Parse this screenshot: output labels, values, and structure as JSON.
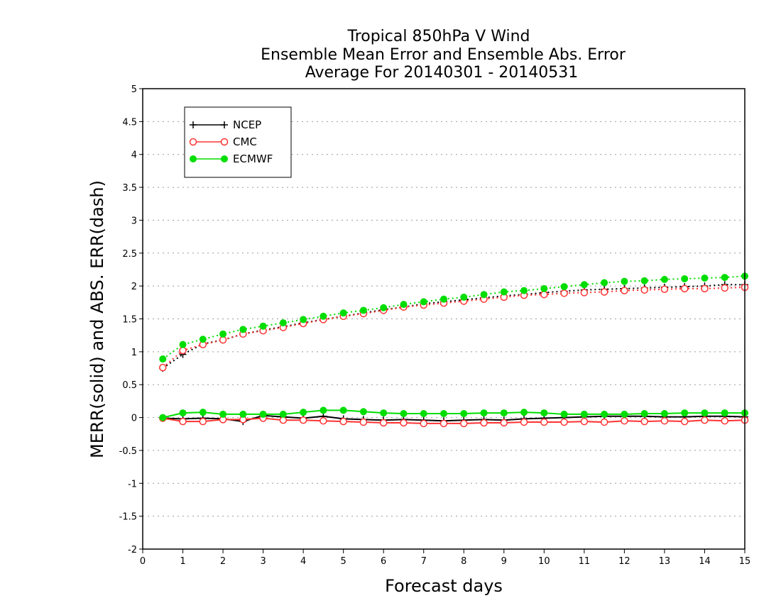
{
  "chart_data": {
    "type": "line",
    "title_lines": [
      "Tropical 850hPa V Wind",
      "Ensemble Mean Error and Ensemble Abs. Error",
      "Average For 20140301 - 20140531"
    ],
    "xlabel": "Forecast days",
    "ylabel": "MERR(solid) and ABS. ERR(dash)",
    "xlim": [
      0,
      15
    ],
    "ylim": [
      -2,
      5
    ],
    "x_ticks": [
      "0",
      "1",
      "2",
      "3",
      "4",
      "5",
      "6",
      "7",
      "8",
      "9",
      "10",
      "11",
      "12",
      "13",
      "14",
      "15"
    ],
    "y_ticks": [
      "5",
      "4.5",
      "4",
      "3.5",
      "3",
      "2.5",
      "2",
      "1.5",
      "1",
      "0.5",
      "0",
      "-0.5",
      "-1",
      "-1.5",
      "-2"
    ],
    "y_tick_values": [
      5,
      4.5,
      4,
      3.5,
      3,
      2.5,
      2,
      1.5,
      1,
      0.5,
      0,
      -0.5,
      -1,
      -1.5,
      -2
    ],
    "grid": "horizontal dotted",
    "legend_position": "top-left",
    "x": [
      0.5,
      1,
      1.5,
      2,
      2.5,
      3,
      3.5,
      4,
      4.5,
      5,
      5.5,
      6,
      6.5,
      7,
      7.5,
      8,
      8.5,
      9,
      9.5,
      10,
      10.5,
      11,
      11.5,
      12,
      12.5,
      13,
      13.5,
      14,
      14.5,
      15
    ],
    "series": [
      {
        "name": "NCEP",
        "color": "#000000",
        "marker": "plus",
        "merr": [
          -0.01,
          -0.02,
          -0.01,
          -0.02,
          -0.06,
          0.03,
          0.01,
          -0.01,
          0.02,
          -0.02,
          -0.03,
          -0.04,
          -0.03,
          -0.04,
          -0.05,
          -0.04,
          -0.03,
          -0.04,
          -0.02,
          -0.01,
          0.0,
          0.01,
          0.02,
          0.02,
          0.02,
          0.01,
          0.01,
          0.02,
          0.02,
          0.01
        ],
        "abs_err": [
          0.75,
          0.96,
          1.12,
          1.18,
          1.27,
          1.33,
          1.38,
          1.44,
          1.49,
          1.54,
          1.59,
          1.64,
          1.68,
          1.73,
          1.76,
          1.79,
          1.82,
          1.85,
          1.87,
          1.9,
          1.92,
          1.94,
          1.95,
          1.96,
          1.97,
          1.98,
          1.99,
          2.0,
          2.02,
          2.02
        ]
      },
      {
        "name": "CMC",
        "color": "#ff3333",
        "marker": "open-circle",
        "merr": [
          -0.01,
          -0.06,
          -0.06,
          -0.03,
          -0.03,
          -0.01,
          -0.04,
          -0.04,
          -0.05,
          -0.06,
          -0.07,
          -0.08,
          -0.08,
          -0.09,
          -0.09,
          -0.09,
          -0.08,
          -0.08,
          -0.07,
          -0.07,
          -0.07,
          -0.06,
          -0.07,
          -0.05,
          -0.06,
          -0.05,
          -0.06,
          -0.04,
          -0.05,
          -0.04
        ],
        "abs_err": [
          0.76,
          1.02,
          1.11,
          1.18,
          1.27,
          1.32,
          1.37,
          1.43,
          1.49,
          1.54,
          1.58,
          1.63,
          1.68,
          1.71,
          1.74,
          1.77,
          1.8,
          1.83,
          1.86,
          1.87,
          1.89,
          1.9,
          1.91,
          1.93,
          1.94,
          1.95,
          1.96,
          1.96,
          1.97,
          1.98
        ]
      },
      {
        "name": "ECMWF",
        "color": "#00dd00",
        "marker": "filled-circle",
        "merr": [
          0.0,
          0.07,
          0.08,
          0.05,
          0.05,
          0.05,
          0.05,
          0.08,
          0.11,
          0.11,
          0.09,
          0.07,
          0.06,
          0.06,
          0.06,
          0.06,
          0.07,
          0.07,
          0.08,
          0.07,
          0.05,
          0.05,
          0.05,
          0.05,
          0.06,
          0.06,
          0.07,
          0.07,
          0.07,
          0.07
        ],
        "abs_err": [
          0.89,
          1.11,
          1.19,
          1.27,
          1.34,
          1.39,
          1.44,
          1.49,
          1.54,
          1.59,
          1.63,
          1.67,
          1.72,
          1.76,
          1.8,
          1.83,
          1.87,
          1.91,
          1.93,
          1.96,
          1.99,
          2.02,
          2.05,
          2.07,
          2.08,
          2.1,
          2.11,
          2.12,
          2.13,
          2.15
        ]
      }
    ]
  }
}
